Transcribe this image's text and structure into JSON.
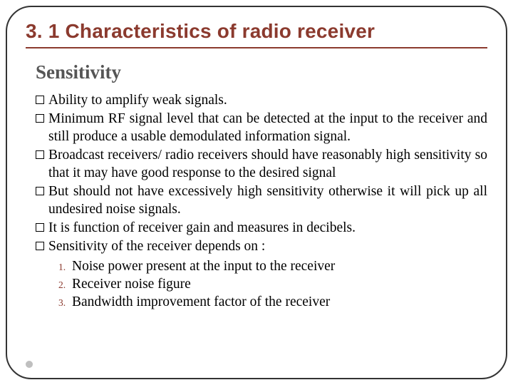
{
  "title": "3. 1 Characteristics of radio receiver",
  "subtitle": "Sensitivity",
  "bullets": [
    {
      "text": "Ability to amplify weak signals.",
      "justify": false
    },
    {
      "text": "Minimum RF signal level that can be detected at the input to the receiver and still produce a usable demodulated information signal.",
      "justify": true
    },
    {
      "text": "Broadcast receivers/ radio receivers should have reasonably high sensitivity so that it may have good response to the desired signal",
      "justify": true
    },
    {
      "text": "But should not have excessively high sensitivity otherwise it will pick up all undesired noise signals.",
      "justify": true
    },
    {
      "text": " It is function of receiver gain and measures in decibels.",
      "justify": false
    },
    {
      "text": "Sensitivity of the receiver depends on :",
      "justify": false
    }
  ],
  "numbered": [
    {
      "n": "1.",
      "text": "Noise power present at the input to the receiver"
    },
    {
      "n": "2.",
      "text": "Receiver noise figure"
    },
    {
      "n": "3.",
      "text": "Bandwidth improvement factor of the receiver"
    }
  ],
  "colors": {
    "accent": "#8b3a2e",
    "border": "#333333",
    "subtitle": "#555555",
    "dot": "#bfbfbf"
  }
}
